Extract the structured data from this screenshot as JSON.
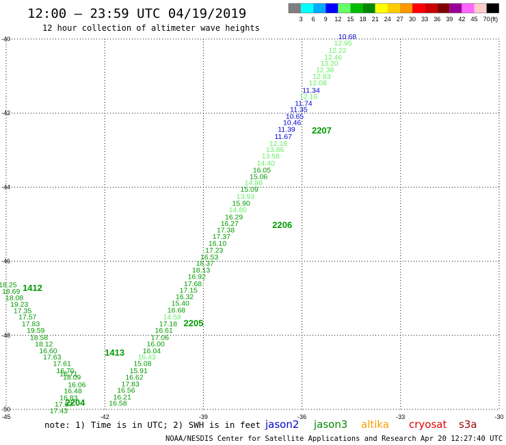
{
  "header": {
    "title": "12:00 – 23:59 UTC 04/19/2019",
    "subtitle": "12 hour collection of altimeter wave heights"
  },
  "color_scale": {
    "labels": [
      "3",
      "6",
      "9",
      "12",
      "15",
      "18",
      "21",
      "24",
      "27",
      "30",
      "33",
      "36",
      "39",
      "42",
      "45",
      "70",
      "(ft)"
    ],
    "colors": [
      "#7f7f7f",
      "#00ffff",
      "#00aaff",
      "#0000ff",
      "#66ff66",
      "#00bb00",
      "#008800",
      "#ffff00",
      "#ffcc00",
      "#ff9900",
      "#ff0000",
      "#cc0000",
      "#800000",
      "#990099",
      "#ff66ff",
      "#ffcccc",
      "#000000"
    ]
  },
  "footer": {
    "note": "note:  1) Time is in UTC; 2) SWH is in feet",
    "credit": "NOAA/NESDIS Center for Satellite Applications and Research    Apr 20 12:27:40 UTC 2019",
    "satellites": [
      {
        "name": "jason2",
        "color": "#0000cc"
      },
      {
        "name": "jason3",
        "color": "#008800"
      },
      {
        "name": "altika",
        "color": "#ff9900"
      },
      {
        "name": "cryosat",
        "color": "#dd0000"
      },
      {
        "name": "s3a",
        "color": "#990000"
      }
    ]
  },
  "chart_data": {
    "type": "scatter",
    "title": "12:00 – 23:59 UTC 04/19/2019",
    "subtitle": "12 hour collection of altimeter wave heights",
    "xlim": [
      -45,
      -30
    ],
    "ylim": [
      -50,
      -40
    ],
    "x_ticks": [
      -45,
      -42,
      -39,
      -36,
      -33,
      -30
    ],
    "y_ticks": [
      -40,
      -42,
      -44,
      -46,
      -48,
      -50
    ],
    "grid": true,
    "colors": {
      "blue": "#0000cc",
      "light": "#66ee66",
      "green": "#009900"
    },
    "pass_labels": [
      {
        "text": "2207",
        "x": -35.4,
        "y": -42.55,
        "color": "green"
      },
      {
        "text": "2206",
        "x": -36.6,
        "y": -45.1,
        "color": "green"
      },
      {
        "text": "2205",
        "x": -39.3,
        "y": -47.75,
        "color": "green"
      },
      {
        "text": "2204",
        "x": -42.9,
        "y": -49.9,
        "color": "green"
      },
      {
        "text": "1412",
        "x": -44.2,
        "y": -46.8,
        "color": "green"
      },
      {
        "text": "1413",
        "x": -41.7,
        "y": -48.55,
        "color": "green"
      }
    ],
    "series": [
      {
        "name": "2207",
        "points": [
          {
            "v": "10.68",
            "x": -34.62,
            "y": -40.0,
            "c": "blue"
          },
          {
            "v": "12.95",
            "x": -34.75,
            "y": -40.18,
            "c": "light"
          },
          {
            "v": "12.22",
            "x": -34.92,
            "y": -40.37,
            "c": "light"
          },
          {
            "v": "12.46",
            "x": -35.05,
            "y": -40.55,
            "c": "light"
          },
          {
            "v": "13.20",
            "x": -35.17,
            "y": -40.72,
            "c": "light"
          },
          {
            "v": "12.38",
            "x": -35.3,
            "y": -40.9,
            "c": "light"
          },
          {
            "v": "12.83",
            "x": -35.4,
            "y": -41.07,
            "c": "light"
          },
          {
            "v": "12.08",
            "x": -35.52,
            "y": -41.25,
            "c": "light"
          },
          {
            "v": "11.34",
            "x": -35.72,
            "y": -41.45,
            "c": "blue"
          },
          {
            "v": "12.16",
            "x": -35.8,
            "y": -41.62,
            "c": "light"
          },
          {
            "v": "11.74",
            "x": -35.95,
            "y": -41.8,
            "c": "blue"
          },
          {
            "v": "11.35",
            "x": -36.1,
            "y": -41.97,
            "c": "blue"
          },
          {
            "v": "10.65",
            "x": -36.22,
            "y": -42.15,
            "c": "blue"
          },
          {
            "v": "10.46",
            "x": -36.3,
            "y": -42.32,
            "c": "blue"
          },
          {
            "v": "11.39",
            "x": -36.47,
            "y": -42.5,
            "c": "blue"
          },
          {
            "v": "11.67",
            "x": -36.57,
            "y": -42.7,
            "c": "blue"
          },
          {
            "v": "12.16",
            "x": -36.72,
            "y": -42.88,
            "c": "light"
          },
          {
            "v": "13.86",
            "x": -36.82,
            "y": -43.05,
            "c": "light"
          },
          {
            "v": "13.58",
            "x": -36.95,
            "y": -43.23,
            "c": "light"
          },
          {
            "v": "14.40",
            "x": -37.1,
            "y": -43.42,
            "c": "light"
          },
          {
            "v": "16.05",
            "x": -37.22,
            "y": -43.6,
            "c": "green"
          },
          {
            "v": "15.06",
            "x": -37.32,
            "y": -43.78,
            "c": "green"
          },
          {
            "v": "14.88",
            "x": -37.47,
            "y": -43.95,
            "c": "light"
          },
          {
            "v": "15.09",
            "x": -37.6,
            "y": -44.12,
            "c": "green"
          },
          {
            "v": "13.93",
            "x": -37.72,
            "y": -44.32,
            "c": "light"
          }
        ]
      },
      {
        "name": "2206",
        "points": [
          {
            "v": "15.90",
            "x": -37.85,
            "y": -44.5,
            "c": "green"
          },
          {
            "v": "14.80",
            "x": -37.95,
            "y": -44.68,
            "c": "light"
          },
          {
            "v": "16.29",
            "x": -38.07,
            "y": -44.87,
            "c": "green"
          },
          {
            "v": "16.27",
            "x": -38.2,
            "y": -45.05,
            "c": "green"
          },
          {
            "v": "17.38",
            "x": -38.32,
            "y": -45.22,
            "c": "green"
          },
          {
            "v": "17.37",
            "x": -38.45,
            "y": -45.4,
            "c": "green"
          },
          {
            "v": "16.10",
            "x": -38.57,
            "y": -45.58,
            "c": "green"
          },
          {
            "v": "17.23",
            "x": -38.67,
            "y": -45.77,
            "c": "green"
          },
          {
            "v": "16.53",
            "x": -38.82,
            "y": -45.95,
            "c": "green"
          }
        ]
      },
      {
        "name": "2205",
        "points": [
          {
            "v": "18.37",
            "x": -38.95,
            "y": -46.12,
            "c": "green"
          },
          {
            "v": "18.13",
            "x": -39.07,
            "y": -46.3,
            "c": "green"
          },
          {
            "v": "16.92",
            "x": -39.2,
            "y": -46.48,
            "c": "green"
          },
          {
            "v": "17.68",
            "x": -39.32,
            "y": -46.67,
            "c": "green"
          },
          {
            "v": "17.15",
            "x": -39.45,
            "y": -46.85,
            "c": "green"
          },
          {
            "v": "16.32",
            "x": -39.57,
            "y": -47.02,
            "c": "green"
          },
          {
            "v": "15.40",
            "x": -39.7,
            "y": -47.2,
            "c": "green"
          },
          {
            "v": "16.68",
            "x": -39.82,
            "y": -47.38,
            "c": "green"
          },
          {
            "v": "14.58",
            "x": -39.95,
            "y": -47.57,
            "c": "light"
          },
          {
            "v": "17.18",
            "x": -40.07,
            "y": -47.75,
            "c": "green"
          },
          {
            "v": "16.61",
            "x": -40.2,
            "y": -47.93,
            "c": "green"
          },
          {
            "v": "17.06",
            "x": -40.32,
            "y": -48.12,
            "c": "green"
          },
          {
            "v": "16.00",
            "x": -40.45,
            "y": -48.3,
            "c": "green"
          },
          {
            "v": "16.04",
            "x": -40.57,
            "y": -48.48,
            "c": "green"
          },
          {
            "v": "16.43",
            "x": -40.72,
            "y": -48.65,
            "c": "light"
          },
          {
            "v": "15.08",
            "x": -40.85,
            "y": -48.83,
            "c": "green"
          },
          {
            "v": "15.91",
            "x": -40.97,
            "y": -49.02,
            "c": "green"
          }
        ]
      },
      {
        "name": "2204",
        "points": [
          {
            "v": "16.62",
            "x": -41.1,
            "y": -49.2,
            "c": "green"
          },
          {
            "v": "17.83",
            "x": -41.22,
            "y": -49.38,
            "c": "green"
          },
          {
            "v": "16.56",
            "x": -41.35,
            "y": -49.55,
            "c": "green"
          },
          {
            "v": "16.21",
            "x": -41.47,
            "y": -49.73,
            "c": "green"
          },
          {
            "v": "16.58",
            "x": -41.6,
            "y": -49.9,
            "c": "green"
          }
        ]
      },
      {
        "name": "1412",
        "points": [
          {
            "v": "18.25",
            "x": -44.95,
            "y": -46.7,
            "c": "green"
          },
          {
            "v": "18.69",
            "x": -44.85,
            "y": -46.88,
            "c": "green"
          },
          {
            "v": "18.08",
            "x": -44.75,
            "y": -47.05,
            "c": "green"
          },
          {
            "v": "19.23",
            "x": -44.6,
            "y": -47.23,
            "c": "green"
          },
          {
            "v": "17.35",
            "x": -44.5,
            "y": -47.4,
            "c": "green"
          },
          {
            "v": "17.57",
            "x": -44.35,
            "y": -47.57,
            "c": "green"
          },
          {
            "v": "17.83",
            "x": -44.25,
            "y": -47.75,
            "c": "green"
          },
          {
            "v": "19.59",
            "x": -44.1,
            "y": -47.93,
            "c": "green"
          },
          {
            "v": "18.58",
            "x": -44.0,
            "y": -48.12,
            "c": "green"
          },
          {
            "v": "18.12",
            "x": -43.85,
            "y": -48.3,
            "c": "green"
          },
          {
            "v": "16.60",
            "x": -43.72,
            "y": -48.48,
            "c": "green"
          },
          {
            "v": "17.63",
            "x": -43.6,
            "y": -48.65,
            "c": "green"
          }
        ]
      },
      {
        "name": "1413",
        "points": [
          {
            "v": "17.61",
            "x": -43.3,
            "y": -48.83,
            "c": "green"
          },
          {
            "v": "16.70",
            "x": -43.2,
            "y": -49.02,
            "c": "green"
          },
          {
            "v": "16.71",
            "x": -43.1,
            "y": -49.1,
            "c": "green"
          },
          {
            "v": "18.09",
            "x": -43.0,
            "y": -49.2,
            "c": "green"
          },
          {
            "v": "16.06",
            "x": -42.85,
            "y": -49.4,
            "c": "green"
          },
          {
            "v": "16.48",
            "x": -42.97,
            "y": -49.57,
            "c": "green"
          },
          {
            "v": "16.83",
            "x": -43.1,
            "y": -49.75,
            "c": "green"
          },
          {
            "v": "17.07",
            "x": -43.25,
            "y": -49.93,
            "c": "green"
          },
          {
            "v": "17.43",
            "x": -43.4,
            "y": -50.1,
            "c": "green"
          }
        ]
      }
    ]
  }
}
